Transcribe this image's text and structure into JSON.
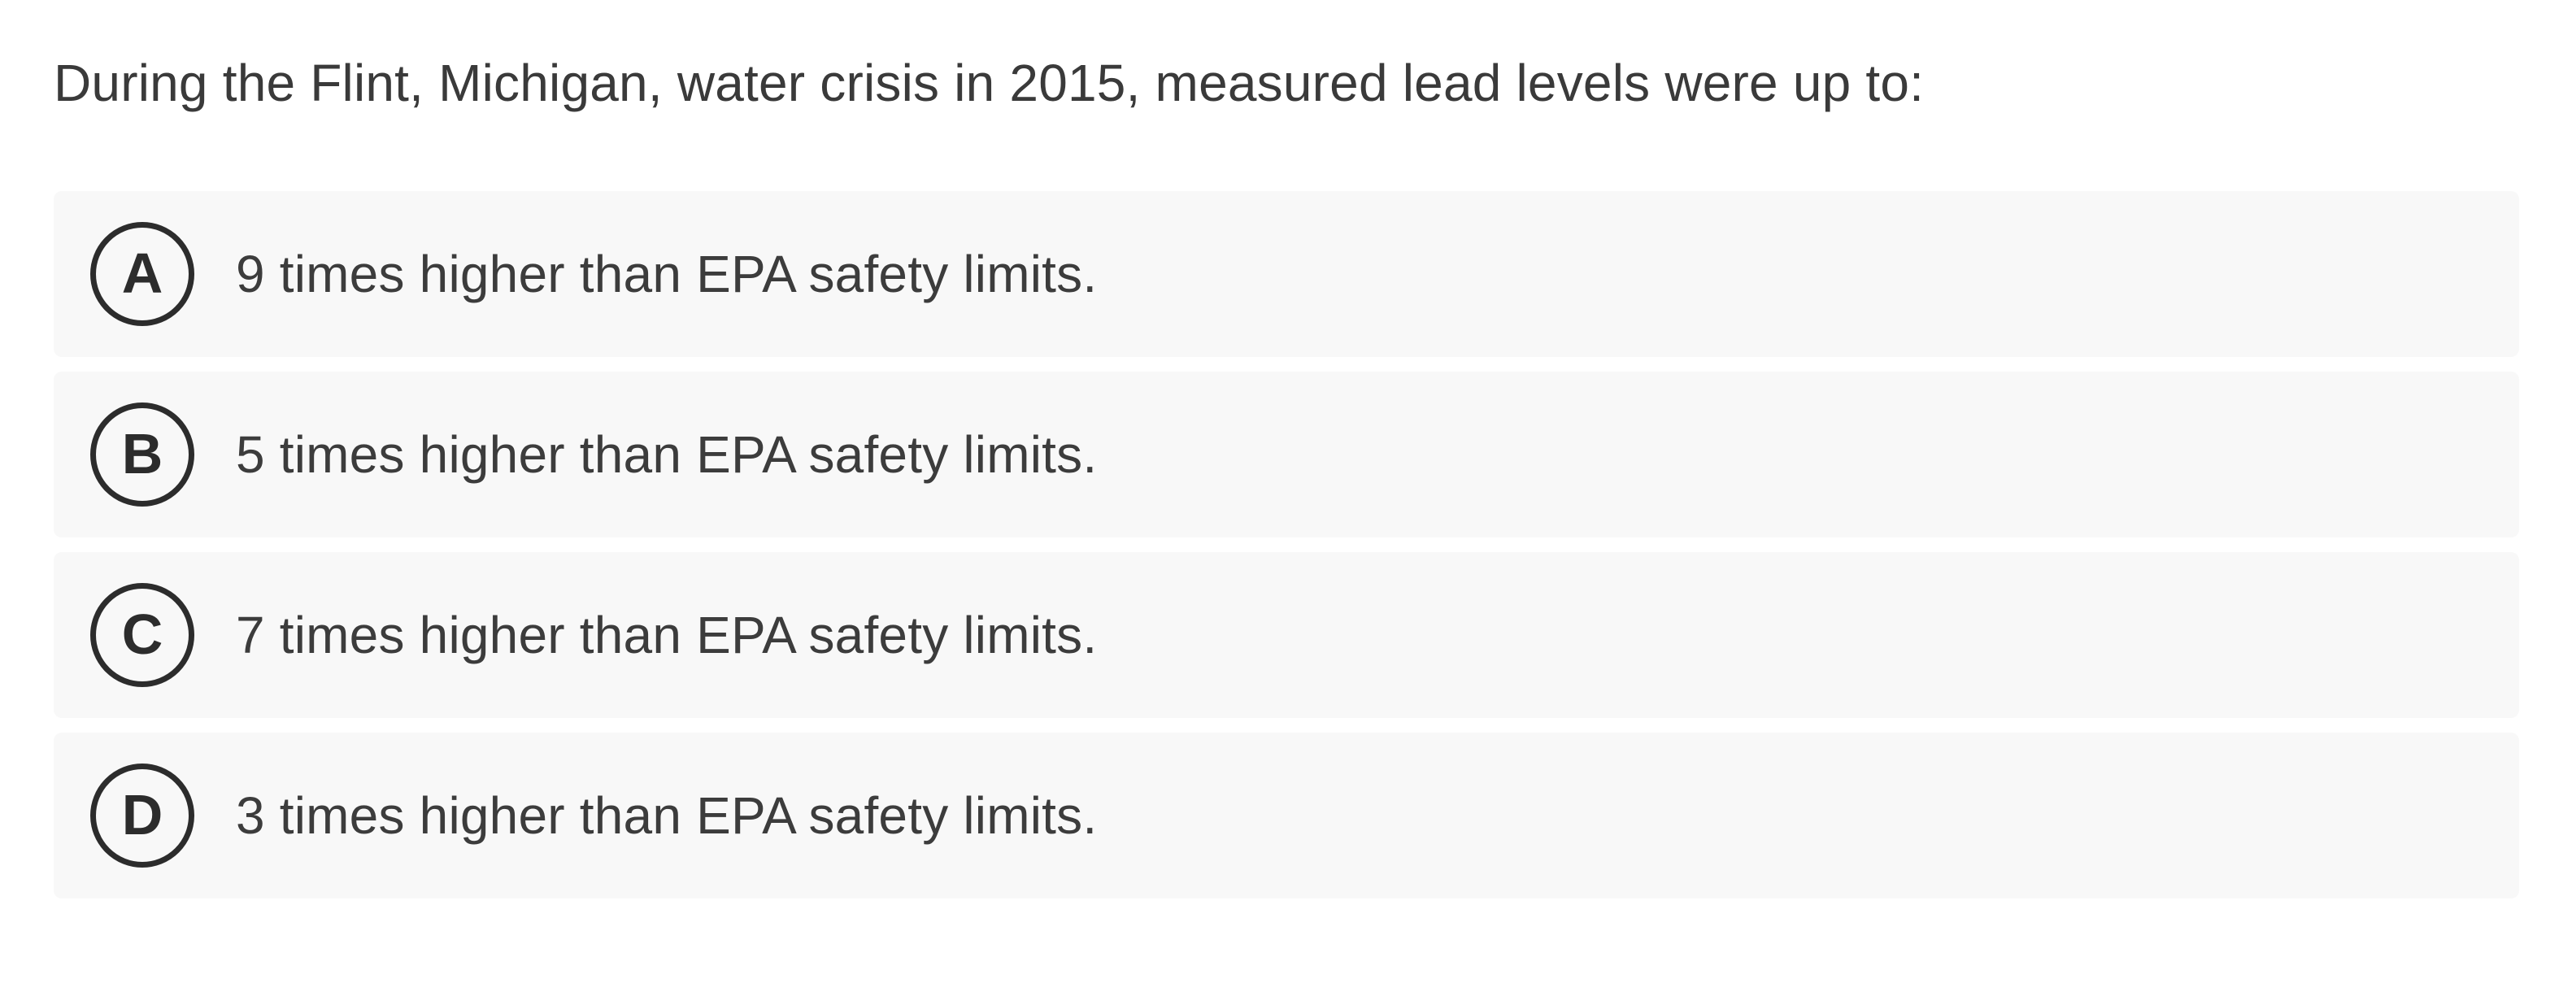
{
  "question": {
    "text": "During the Flint, Michigan, water crisis in 2015, measured lead levels were up to:"
  },
  "options": [
    {
      "letter": "A",
      "text": "9 times higher than EPA safety limits."
    },
    {
      "letter": "B",
      "text": "5 times higher than EPA safety limits."
    },
    {
      "letter": "C",
      "text": "7 times higher than EPA safety limits."
    },
    {
      "letter": "D",
      "text": "3 times higher than EPA safety limits."
    }
  ],
  "colors": {
    "page_background": "#ffffff",
    "option_background": "#f8f8f8",
    "question_text": "#3a3a3a",
    "option_text": "#3c3c3c",
    "letter_circle": "#2c2c2c"
  }
}
